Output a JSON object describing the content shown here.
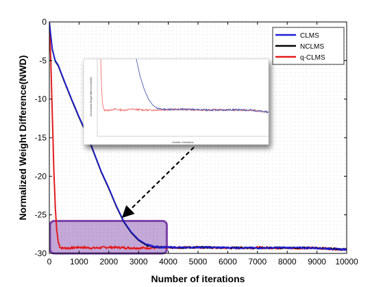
{
  "chart_data": {
    "type": "line",
    "title": "",
    "xlabel": "Number of iterations",
    "ylabel": "Normalized Weight Difference(NWD)",
    "xlim": [
      0,
      10000
    ],
    "ylim": [
      -30,
      0
    ],
    "x_ticks": [
      "0",
      "1000",
      "2000",
      "3000",
      "4000",
      "5000",
      "6000",
      "7000",
      "8000",
      "9000",
      "10000"
    ],
    "y_ticks": [
      "0",
      "-5",
      "-10",
      "-15",
      "-20",
      "-25",
      "-30"
    ],
    "grid": true,
    "legend": {
      "placement": "top-right"
    },
    "series": [
      {
        "name": "CLMS",
        "color": "#1f1fd6",
        "x": [
          0,
          100,
          200,
          300,
          500,
          750,
          1000,
          1250,
          1500,
          1750,
          2000,
          2250,
          2500,
          2750,
          3000,
          3250,
          3500,
          3750,
          4000,
          4500,
          5000,
          6000,
          7000,
          8000,
          9000,
          10000
        ],
        "y": [
          0,
          -3.5,
          -5.0,
          -5.6,
          -7.6,
          -10.0,
          -12.3,
          -14.4,
          -16.9,
          -19.4,
          -21.5,
          -23.8,
          -25.8,
          -27.2,
          -28.2,
          -28.8,
          -29.1,
          -29.2,
          -29.2,
          -29.25,
          -29.2,
          -29.25,
          -29.3,
          -29.25,
          -29.3,
          -29.5
        ]
      },
      {
        "name": "NCLMS",
        "color": "#000000",
        "x": [
          0,
          100,
          200,
          300,
          500,
          750,
          1000,
          1250,
          1500,
          1750,
          2000,
          2250,
          2500,
          2750,
          3000,
          3250,
          3500,
          3750,
          4000,
          4500,
          5000,
          6000,
          7000,
          8000,
          9000,
          10000
        ],
        "y": [
          0,
          -3.6,
          -5.1,
          -5.7,
          -7.7,
          -10.1,
          -12.4,
          -14.5,
          -17.0,
          -19.5,
          -21.6,
          -23.9,
          -25.9,
          -27.3,
          -28.3,
          -28.9,
          -29.15,
          -29.2,
          -29.2,
          -29.25,
          -29.2,
          -29.25,
          -29.3,
          -29.25,
          -29.3,
          -29.5
        ]
      },
      {
        "name": "q-CLMS",
        "color": "#e31a1c",
        "x": [
          0,
          50,
          100,
          150,
          200,
          250,
          300,
          350,
          400,
          500,
          700,
          1000,
          1500,
          2000,
          3000,
          4000,
          5000,
          6000,
          7000,
          8000,
          9000,
          10000
        ],
        "y": [
          0,
          -5.0,
          -12.0,
          -19.0,
          -24.0,
          -27.0,
          -28.5,
          -29.1,
          -29.3,
          -29.3,
          -29.3,
          -29.2,
          -29.3,
          -29.2,
          -29.3,
          -29.25,
          -29.2,
          -29.3,
          -29.25,
          -29.3,
          -29.3,
          -29.5
        ]
      }
    ],
    "highlight": {
      "x_range": [
        0,
        3950
      ],
      "y_range": [
        -30,
        -25.8
      ],
      "color": "#7a3fa8"
    },
    "inset": {
      "xlabel": "Number of iterations",
      "ylabel": "Normalized Weight Difference(NWD)"
    }
  }
}
